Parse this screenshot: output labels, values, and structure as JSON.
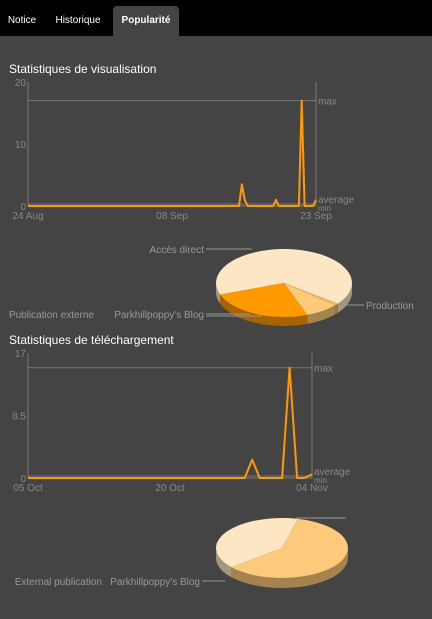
{
  "tabs": [
    {
      "label": "Notice",
      "active": false
    },
    {
      "label": "Historique",
      "active": false
    },
    {
      "label": "Popularité",
      "active": true
    }
  ],
  "sections": {
    "views_title": "Statistiques de visualisation",
    "downloads_title": "Statistiques de téléchargement"
  },
  "colors": {
    "background": "#444444",
    "tabbar": "#000000",
    "line": "#ff9900",
    "axis": "#777777",
    "text_muted": "#888888",
    "label": "#999999"
  },
  "chart_data": [
    {
      "type": "line",
      "x_tick_labels": [
        "24 Aug",
        "08 Sep",
        "23 Sep"
      ],
      "y_tick_labels": [
        "20",
        "10",
        "0"
      ],
      "ylim": [
        0,
        20
      ],
      "ref_labels": {
        "max": "max",
        "average": "average",
        "min": "min"
      },
      "max_value": 17,
      "series": [
        {
          "values": [
            0,
            0,
            0,
            0,
            0,
            0,
            0,
            0,
            0,
            0,
            0,
            0,
            0,
            0,
            0,
            0,
            0,
            0,
            0,
            0,
            0,
            0,
            0,
            0,
            0,
            0,
            0,
            0,
            0,
            0,
            0,
            0,
            0,
            0,
            0,
            0,
            0,
            0,
            0,
            0,
            0,
            0,
            0,
            0,
            0,
            0,
            0,
            0,
            0,
            0,
            0,
            0,
            0,
            0,
            0,
            0,
            0,
            0,
            0,
            0,
            0,
            0,
            0,
            0,
            0,
            0,
            0,
            0,
            0,
            0,
            0,
            0,
            0,
            0,
            0,
            3.5,
            1,
            0,
            0,
            0,
            0,
            0,
            0,
            0,
            0,
            0,
            0,
            1,
            0,
            0,
            0,
            0,
            0,
            0,
            0,
            0,
            17,
            0,
            0,
            0,
            0,
            1
          ]
        }
      ]
    },
    {
      "type": "pie",
      "labels": [
        "Accès direct",
        "Publication externe",
        "Parkhillpoppy's Blog",
        "Production"
      ],
      "values": [
        66,
        1,
        8,
        25
      ],
      "colors": [
        "#fde6c4",
        "#f2b75e",
        "#fdc97a",
        "#ff9900"
      ]
    },
    {
      "type": "line",
      "x_tick_labels": [
        "05 Oct",
        "20 Oct",
        "04 Nov"
      ],
      "y_tick_labels": [
        "17",
        "8.5",
        "0"
      ],
      "ylim": [
        0,
        17
      ],
      "ref_labels": {
        "max": "max",
        "average": "average",
        "min": "min"
      },
      "max_value": 15,
      "series": [
        {
          "values": [
            0,
            0,
            0,
            0,
            0,
            0,
            0,
            0,
            0,
            0,
            0,
            0,
            0,
            0,
            0,
            0,
            0,
            0,
            0,
            0,
            0,
            0,
            0,
            0,
            0,
            0,
            0,
            0,
            0,
            0,
            2.5,
            0,
            0,
            0,
            0,
            15,
            0,
            0,
            0.5
          ]
        }
      ]
    },
    {
      "type": "pie",
      "labels": [
        "External publication",
        "Parkhillpoppy's Blog"
      ],
      "values": [
        40,
        60
      ],
      "colors": [
        "#fde6c4",
        "#fdc97a",
        "#ff9900"
      ]
    }
  ]
}
